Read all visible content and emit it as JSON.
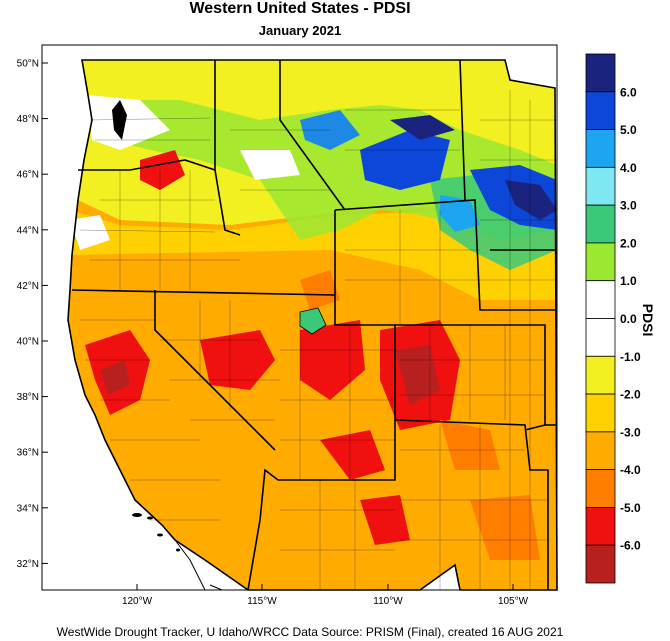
{
  "title": "Western United States - PDSI",
  "subtitle": "January 2021",
  "footer": "WestWide Drought Tracker, U Idaho/WRCC Data Source: PRISM (Final), created 16 AUG 2021",
  "colorbar": {
    "title": "PDSI",
    "labels": [
      "6.0",
      "5.0",
      "4.0",
      "3.0",
      "2.0",
      "1.0",
      "0.0",
      "-1.0",
      "-2.0",
      "-3.0",
      "-4.0",
      "-5.0",
      "-6.0"
    ],
    "colors": [
      "#1a237e",
      "#0d47d9",
      "#1ea5f0",
      "#7fe7f2",
      "#3bc979",
      "#9be832",
      "#ffffff",
      "#ffffff",
      "#f2f020",
      "#ffd100",
      "#ffab00",
      "#ff7e00",
      "#f01010",
      "#b82020"
    ]
  },
  "map": {
    "lat_labels": [
      "50°N",
      "48°N",
      "46°N",
      "44°N",
      "42°N",
      "40°N",
      "38°N",
      "36°N",
      "34°N",
      "32°N"
    ],
    "lon_labels": [
      "120°W",
      "115°W",
      "110°W",
      "105°W"
    ],
    "wet_color": "#1e88e5",
    "dry_color": "#d32f2f"
  }
}
